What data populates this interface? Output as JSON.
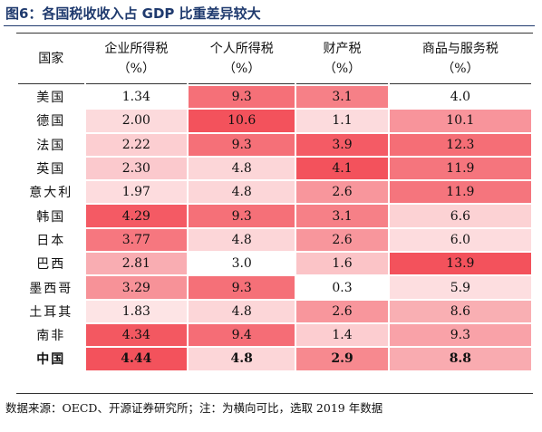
{
  "title": "图6：各国税收收入占 GDP 比重差异较大",
  "table": {
    "header": [
      "国家",
      {
        "name": "企业所得税",
        "unit": "（%）"
      },
      {
        "name": "个人所得税",
        "unit": "（%）"
      },
      {
        "name": "财产税",
        "unit": "（%）"
      },
      {
        "name": "商品与服务税",
        "unit": "（%）"
      }
    ],
    "rows": [
      [
        "美国",
        "1.34",
        "9.3",
        "3.1",
        "4.0"
      ],
      [
        "德国",
        "2.00",
        "10.6",
        "1.1",
        "10.1"
      ],
      [
        "法国",
        "2.22",
        "9.3",
        "3.9",
        "12.3"
      ],
      [
        "英国",
        "2.30",
        "4.8",
        "4.1",
        "11.9"
      ],
      [
        "意大利",
        "1.97",
        "4.8",
        "2.6",
        "11.9"
      ],
      [
        "韩国",
        "4.29",
        "9.3",
        "3.1",
        "6.6"
      ],
      [
        "日本",
        "3.77",
        "4.8",
        "2.6",
        "6.0"
      ],
      [
        "巴西",
        "2.81",
        "3.0",
        "1.6",
        "13.9"
      ],
      [
        "墨西哥",
        "3.29",
        "9.3",
        "0.3",
        "5.9"
      ],
      [
        "土耳其",
        "1.83",
        "4.8",
        "2.6",
        "8.6"
      ],
      [
        "南非",
        "4.34",
        "9.4",
        "1.4",
        "9.3"
      ],
      [
        "中国",
        "4.44",
        "4.8",
        "2.9",
        "8.8"
      ]
    ]
  },
  "footer": "数据来源：OECD、开源证券研究所；注：为横向可比，选取 2019 年数据"
}
